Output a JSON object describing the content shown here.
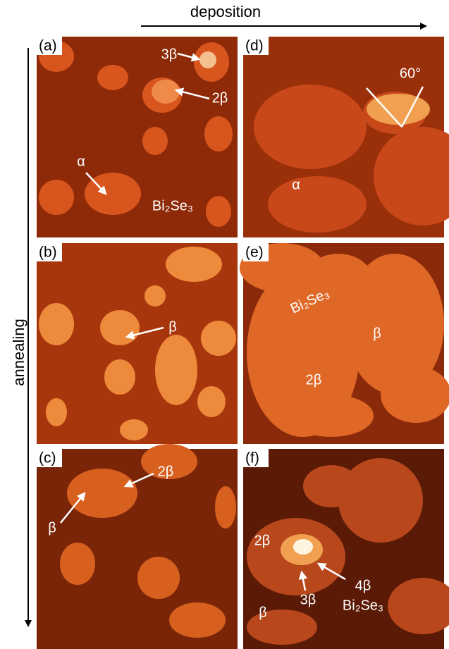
{
  "axes": {
    "horizontal": "deposition",
    "vertical": "annealing"
  },
  "panels": [
    {
      "label": "(a)",
      "annotations": [
        "3β",
        "2β",
        "α",
        "Bi₂Se₃"
      ]
    },
    {
      "label": "(d)",
      "annotations": [
        "60°",
        "α"
      ]
    },
    {
      "label": "(b)",
      "annotations": [
        "β"
      ]
    },
    {
      "label": "(e)",
      "annotations": [
        "Bi₂Se₃",
        "β",
        "2β"
      ]
    },
    {
      "label": "(c)",
      "annotations": [
        "2β",
        "β"
      ]
    },
    {
      "label": "(f)",
      "annotations": [
        "2β",
        "3β",
        "4β",
        "β",
        "Bi₂Se₃"
      ]
    }
  ]
}
